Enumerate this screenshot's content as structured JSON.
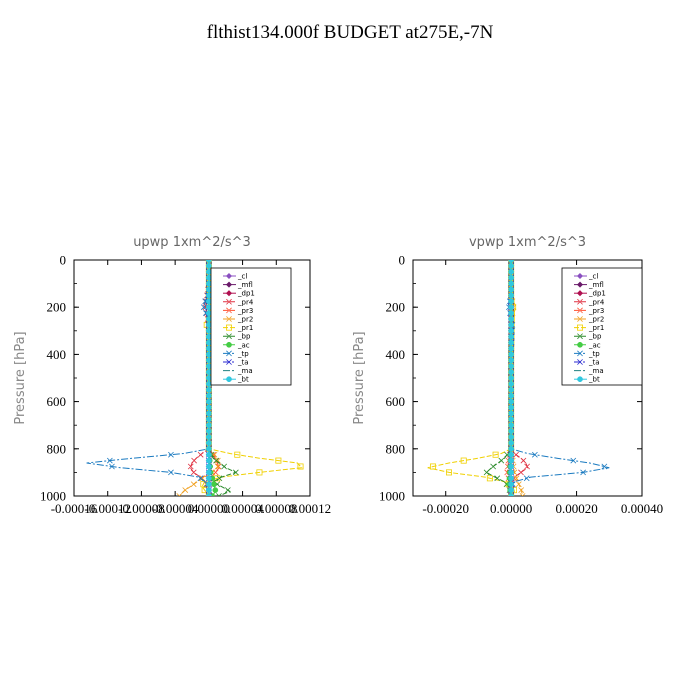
{
  "title": "flthist134.000f  BUDGET at275E,-7N",
  "chart_data": [
    {
      "type": "line",
      "title": "upwp   1xm^2/s^3",
      "ylabel": "Pressure [hPa]",
      "ylim": [
        1000,
        0
      ],
      "xlim": [
        -0.00016,
        0.00012
      ],
      "x_ticks": [
        -0.00016,
        -0.00012,
        -8e-05,
        -4e-05,
        0.0,
        4e-05,
        8e-05,
        0.00012
      ],
      "x_tick_labels": [
        "-0.00016",
        "-0.00012",
        "-0.00008",
        "-0.00004",
        "0.00000",
        "0.00004",
        "0.00008",
        "0.00012"
      ],
      "y_ticks": [
        0,
        200,
        400,
        600,
        800,
        1000
      ],
      "y_tick_labels": [
        "0",
        "200",
        "400",
        "600",
        "800",
        "1000"
      ],
      "legend_position": "top-right",
      "series": [
        {
          "name": "_cl",
          "color": "#8a4fc0",
          "marker": "diamond",
          "pressure": [
            0,
            100,
            200,
            300,
            400,
            500,
            600,
            700,
            800,
            850,
            900,
            950,
            1000
          ],
          "values": [
            0,
            0,
            0,
            0,
            0,
            0,
            0,
            0,
            0,
            0,
            0,
            0,
            0
          ]
        },
        {
          "name": "_mfl",
          "color": "#6a1a6a",
          "marker": "diamond",
          "pressure": [
            0,
            100,
            200,
            300,
            400,
            500,
            600,
            700,
            800,
            850,
            900,
            950,
            1000
          ],
          "values": [
            0,
            0,
            0,
            0,
            0,
            0,
            0,
            0,
            0,
            0,
            0,
            0,
            0
          ]
        },
        {
          "name": "_dp1",
          "color": "#b01050",
          "marker": "diamond",
          "pressure": [
            0,
            100,
            200,
            300,
            400,
            500,
            600,
            700,
            800,
            850,
            900,
            950,
            1000
          ],
          "values": [
            0,
            0,
            0,
            0,
            0,
            0,
            0,
            0,
            0,
            0,
            0,
            0,
            0
          ]
        },
        {
          "name": "_pr4",
          "color": "#e03040",
          "marker": "cross",
          "pressure": [
            0,
            100,
            170,
            200,
            230,
            300,
            400,
            600,
            800,
            820,
            840,
            860,
            880,
            900,
            920,
            940,
            960,
            980,
            1000
          ],
          "values": [
            0,
            0,
            -3e-06,
            -4e-06,
            -2e-06,
            0,
            0,
            0,
            0,
            -8e-06,
            -1.5e-05,
            -2e-05,
            -2.2e-05,
            -1.8e-05,
            -1e-05,
            -4e-06,
            -2e-06,
            0,
            0
          ]
        },
        {
          "name": "_pr3",
          "color": "#ff5030",
          "marker": "cross",
          "pressure": [
            0,
            400,
            800,
            830,
            860,
            880,
            900,
            920,
            950,
            1000
          ],
          "values": [
            0,
            0,
            0,
            6e-06,
            1e-05,
            1.2e-05,
            8e-06,
            3e-06,
            0,
            0
          ]
        },
        {
          "name": "_pr2",
          "color": "#f0a020",
          "marker": "cross",
          "pressure": [
            0,
            150,
            180,
            200,
            220,
            250,
            300,
            400,
            800,
            830,
            860,
            880,
            900,
            930,
            960,
            980,
            1000
          ],
          "values": [
            0,
            0,
            5e-06,
            6e-06,
            4e-06,
            2e-06,
            0,
            0,
            0,
            8e-06,
            1.2e-05,
            1e-05,
            4e-06,
            -1e-05,
            -2.2e-05,
            -3e-05,
            -3.5e-05
          ]
        },
        {
          "name": "_pr1",
          "color": "#f0d000",
          "marker": "square",
          "pressure": [
            0,
            170,
            200,
            230,
            280,
            300,
            400,
            800,
            820,
            840,
            860,
            880,
            900,
            920,
            940,
            960,
            980,
            1000
          ],
          "values": [
            0,
            0,
            4e-06,
            2e-06,
            -3e-06,
            0,
            0,
            0,
            2.5e-05,
            6e-05,
            0.000105,
            0.00011,
            6e-05,
            1.5e-05,
            -5e-06,
            -8e-06,
            -4e-06,
            0
          ]
        },
        {
          "name": "_bp",
          "color": "#2a8a2a",
          "marker": "cross",
          "pressure": [
            0,
            400,
            800,
            840,
            880,
            900,
            920,
            940,
            960,
            980,
            1000
          ],
          "values": [
            0,
            0,
            0,
            5e-06,
            2e-05,
            3.2e-05,
            1.5e-05,
            5e-06,
            1.5e-05,
            2.5e-05,
            1.2e-05
          ]
        },
        {
          "name": "_ac",
          "color": "#44cc44",
          "marker": "circle",
          "pressure": [
            0,
            400,
            800,
            900,
            950,
            980,
            1000
          ],
          "values": [
            0,
            0,
            0,
            2e-06,
            6e-06,
            8e-06,
            4e-06
          ]
        },
        {
          "name": "_tp",
          "color": "#1a7ac0",
          "marker": "cross",
          "pressure": [
            0,
            140,
            170,
            200,
            230,
            260,
            300,
            400,
            800,
            820,
            840,
            860,
            880,
            900,
            920,
            940,
            960,
            980,
            1000
          ],
          "values": [
            0,
            0,
            -4e-06,
            -6e-06,
            -3e-06,
            2e-06,
            0,
            0,
            0,
            -3e-05,
            -9e-05,
            -0.000145,
            -0.000105,
            -4.5e-05,
            -1.2e-05,
            -4e-06,
            0,
            0,
            0
          ]
        },
        {
          "name": "_ta",
          "color": "#2a2ad0",
          "marker": "cross",
          "pressure": [
            0,
            400,
            800,
            900,
            1000
          ],
          "values": [
            0,
            0,
            0,
            0,
            0
          ]
        },
        {
          "name": "_ma",
          "color": "#208080",
          "marker": "none",
          "pressure": [
            0,
            400,
            800,
            900,
            1000
          ],
          "values": [
            0,
            0,
            0,
            0,
            0
          ]
        },
        {
          "name": "_bt",
          "color": "#30c8e0",
          "marker": "circle",
          "pressure": [
            0,
            400,
            800,
            900,
            1000
          ],
          "values": [
            0,
            0,
            0,
            0,
            0
          ]
        }
      ]
    },
    {
      "type": "line",
      "title": "vpwp   1xm^2/s^3",
      "ylabel": "Pressure [hPa]",
      "ylim": [
        1000,
        0
      ],
      "xlim": [
        -0.0003,
        0.0004
      ],
      "x_ticks": [
        -0.0002,
        0.0,
        0.0002,
        0.0004
      ],
      "x_tick_labels": [
        "-0.00020",
        "0.00000",
        "0.00020",
        "0.00040"
      ],
      "y_ticks": [
        0,
        200,
        400,
        600,
        800,
        1000
      ],
      "y_tick_labels": [
        "0",
        "200",
        "400",
        "600",
        "800",
        "1000"
      ],
      "legend_position": "top-right",
      "series": [
        {
          "name": "_cl",
          "color": "#8a4fc0",
          "marker": "diamond",
          "pressure": [
            0,
            100,
            200,
            300,
            400,
            500,
            600,
            700,
            800,
            850,
            900,
            950,
            1000
          ],
          "values": [
            0,
            0,
            0,
            0,
            0,
            0,
            0,
            0,
            0,
            0,
            0,
            0,
            0
          ]
        },
        {
          "name": "_mfl",
          "color": "#6a1a6a",
          "marker": "diamond",
          "pressure": [
            0,
            100,
            200,
            300,
            400,
            500,
            600,
            700,
            800,
            850,
            900,
            950,
            1000
          ],
          "values": [
            0,
            0,
            0,
            0,
            0,
            0,
            0,
            0,
            0,
            0,
            0,
            0,
            0
          ]
        },
        {
          "name": "_dp1",
          "color": "#b01050",
          "marker": "diamond",
          "pressure": [
            0,
            100,
            200,
            300,
            400,
            500,
            600,
            700,
            800,
            850,
            900,
            950,
            1000
          ],
          "values": [
            0,
            0,
            0,
            0,
            0,
            0,
            0,
            0,
            0,
            0,
            0,
            0,
            0
          ]
        },
        {
          "name": "_pr4",
          "color": "#e03040",
          "marker": "cross",
          "pressure": [
            0,
            400,
            800,
            820,
            840,
            860,
            880,
            900,
            920,
            940,
            960,
            1000
          ],
          "values": [
            0,
            0,
            0,
            1e-05,
            3e-05,
            4.5e-05,
            5e-05,
            3e-05,
            1e-05,
            4e-06,
            0,
            0
          ]
        },
        {
          "name": "_pr3",
          "color": "#ff5030",
          "marker": "cross",
          "pressure": [
            0,
            400,
            800,
            850,
            900,
            950,
            1000
          ],
          "values": [
            0,
            0,
            0,
            -8e-06,
            -1.2e-05,
            -4e-06,
            0
          ]
        },
        {
          "name": "_pr2",
          "color": "#f0a020",
          "marker": "cross",
          "pressure": [
            0,
            160,
            190,
            220,
            260,
            400,
            800,
            900,
            940,
            970,
            1000
          ],
          "values": [
            0,
            0,
            8e-06,
            5e-06,
            0,
            0,
            0,
            1e-05,
            2e-05,
            3e-05,
            3.5e-05
          ]
        },
        {
          "name": "_pr1",
          "color": "#f0d000",
          "marker": "square",
          "pressure": [
            0,
            170,
            200,
            230,
            400,
            800,
            820,
            840,
            860,
            880,
            900,
            920,
            940,
            960,
            980,
            1000
          ],
          "values": [
            0,
            0,
            6e-06,
            2e-06,
            0,
            0,
            -3e-05,
            -0.0001,
            -0.00019,
            -0.000255,
            -0.00019,
            -8e-05,
            -2e-05,
            5e-06,
            1e-05,
            0
          ]
        },
        {
          "name": "_bp",
          "color": "#2a8a2a",
          "marker": "cross",
          "pressure": [
            0,
            400,
            800,
            840,
            880,
            900,
            920,
            940,
            960,
            1000
          ],
          "values": [
            0,
            0,
            0,
            -2e-05,
            -6e-05,
            -7.5e-05,
            -5e-05,
            -2e-05,
            -8e-06,
            0
          ]
        },
        {
          "name": "_ac",
          "color": "#44cc44",
          "marker": "circle",
          "pressure": [
            0,
            400,
            800,
            900,
            950,
            1000
          ],
          "values": [
            0,
            0,
            0,
            -4e-06,
            -6e-06,
            0
          ]
        },
        {
          "name": "_tp",
          "color": "#1a7ac0",
          "marker": "cross",
          "pressure": [
            0,
            160,
            190,
            220,
            270,
            400,
            800,
            820,
            840,
            860,
            880,
            900,
            920,
            940,
            960,
            1000
          ],
          "values": [
            0,
            0,
            -8e-06,
            -4e-06,
            4e-06,
            0,
            0,
            5e-05,
            0.00014,
            0.00024,
            0.0003,
            0.00022,
            6e-05,
            1e-05,
            0,
            0
          ]
        },
        {
          "name": "_ta",
          "color": "#2a2ad0",
          "marker": "cross",
          "pressure": [
            0,
            400,
            800,
            900,
            1000
          ],
          "values": [
            0,
            0,
            0,
            0,
            0
          ]
        },
        {
          "name": "_ma",
          "color": "#208080",
          "marker": "none",
          "pressure": [
            0,
            400,
            800,
            900,
            1000
          ],
          "values": [
            0,
            0,
            0,
            0,
            0
          ]
        },
        {
          "name": "_bt",
          "color": "#30c8e0",
          "marker": "circle",
          "pressure": [
            0,
            400,
            800,
            900,
            1000
          ],
          "values": [
            0,
            0,
            0,
            0,
            0
          ]
        }
      ]
    }
  ]
}
